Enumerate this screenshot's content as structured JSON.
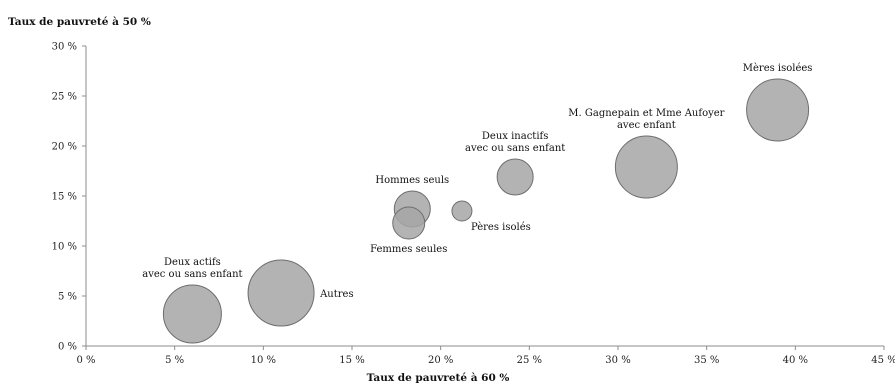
{
  "chart_data": {
    "type": "bubble",
    "xlabel": "Taux de pauvreté à 60 %",
    "ylabel": "Taux de pauvreté à 50 %",
    "xlim": [
      0,
      45
    ],
    "ylim": [
      0,
      30
    ],
    "xticks": [
      "0 %",
      "5 %",
      "10 %",
      "15 %",
      "20 %",
      "25 %",
      "30 %",
      "35 %",
      "40 %",
      "45 %"
    ],
    "yticks": [
      "0 %",
      "5 %",
      "10 %",
      "15 %",
      "20 %",
      "25 %",
      "30 %"
    ],
    "grid": false,
    "bubble_color": "#a6a6a6",
    "bubble_stroke": "#6e6e6e",
    "points": [
      {
        "label": [
          "Deux actifs",
          "avec ou sans enfant"
        ],
        "x": 6.0,
        "y": 3.2,
        "size": 29,
        "label_pos": "above"
      },
      {
        "label": [
          "Autres"
        ],
        "x": 11.0,
        "y": 5.3,
        "size": 33,
        "label_pos": "right"
      },
      {
        "label": [
          "Hommes seuls"
        ],
        "x": 18.4,
        "y": 13.7,
        "size": 18,
        "label_pos": "above"
      },
      {
        "label": [
          "Femmes seules"
        ],
        "x": 18.2,
        "y": 12.3,
        "size": 16,
        "label_pos": "below"
      },
      {
        "label": [
          "Pères isolés"
        ],
        "x": 21.2,
        "y": 13.5,
        "size": 10,
        "label_pos": "below-right"
      },
      {
        "label": [
          "Deux inactifs",
          "avec ou sans enfant"
        ],
        "x": 24.2,
        "y": 16.9,
        "size": 18,
        "label_pos": "above"
      },
      {
        "label": [
          "M. Gagnepain et Mme Aufoyer",
          "avec enfant"
        ],
        "x": 31.6,
        "y": 17.9,
        "size": 31,
        "label_pos": "above"
      },
      {
        "label": [
          "Mères isolées"
        ],
        "x": 39.0,
        "y": 23.6,
        "size": 31,
        "label_pos": "above"
      }
    ]
  }
}
